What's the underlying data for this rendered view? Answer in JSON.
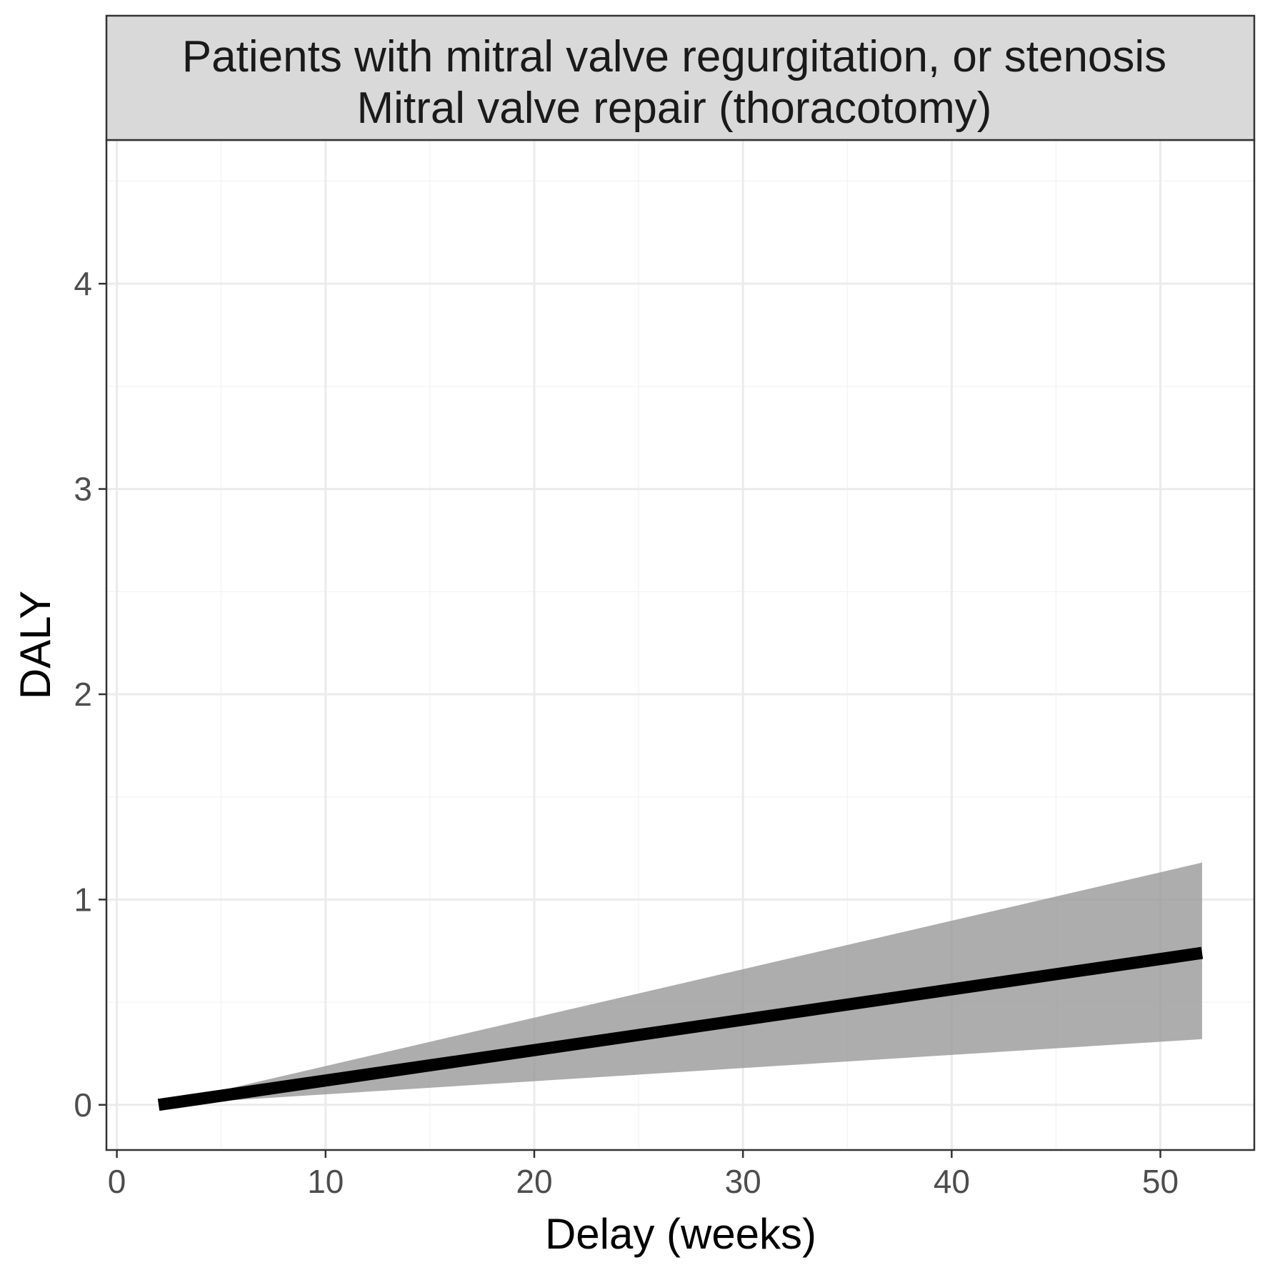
{
  "chart_data": {
    "type": "line",
    "facet_title": [
      "Patients with mitral valve regurgitation, or stenosis",
      "Mitral valve repair (thoracotomy)"
    ],
    "xlabel": "Delay (weeks)",
    "ylabel": "DALY",
    "xlim": [
      -0.5,
      54.5
    ],
    "ylim": [
      -0.22,
      4.7
    ],
    "x_ticks": [
      0,
      10,
      20,
      30,
      40,
      50
    ],
    "x_tick_labels": [
      "0",
      "10",
      "20",
      "30",
      "40",
      "50"
    ],
    "y_ticks": [
      0,
      1,
      2,
      3,
      4
    ],
    "y_tick_labels": [
      "0",
      "1",
      "2",
      "3",
      "4"
    ],
    "x_minor": [
      5,
      15,
      25,
      35,
      45
    ],
    "y_minor": [
      0.5,
      1.5,
      2.5,
      3.5,
      4.5
    ],
    "grid": true,
    "legend": "none",
    "series": [
      {
        "x": [
          2,
          52
        ],
        "y": [
          0,
          0.74
        ],
        "ribbon_lower": [
          0,
          0.32
        ],
        "ribbon_upper": [
          0,
          1.18
        ]
      }
    ],
    "colors": {
      "line": "#000000",
      "ribbon": "#999999",
      "strip_fill": "#d9d9d9",
      "grid_major": "#ebebeb",
      "grid_minor": "#f4f4f4",
      "border": "#333333"
    }
  }
}
